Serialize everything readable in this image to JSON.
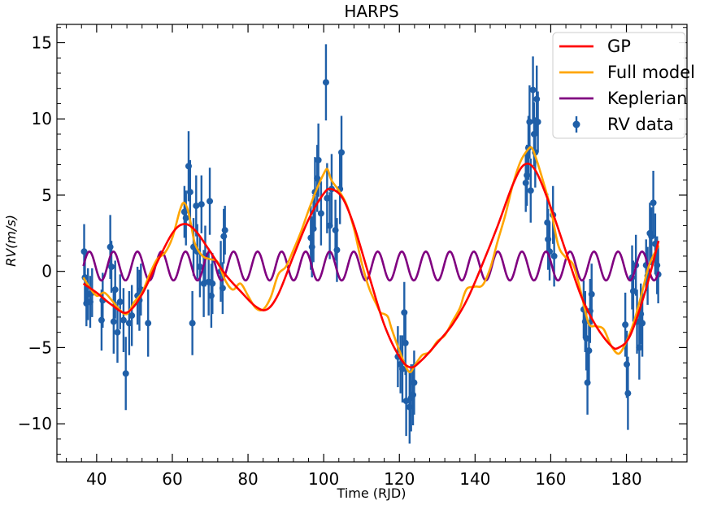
{
  "chart_data": {
    "type": "line",
    "title": "HARPS",
    "xlabel": "Time (RJD)",
    "ylabel": "RV(m/s)",
    "xlim": [
      29.5,
      196
    ],
    "ylim": [
      -12.5,
      16.2
    ],
    "xticks": [
      40,
      60,
      80,
      100,
      120,
      140,
      160,
      180
    ],
    "yticks": [
      -10,
      -5,
      0,
      5,
      10,
      15
    ],
    "grid": false,
    "legend": "top-right",
    "colors": {
      "gp": "#ff0000",
      "full": "#ffa500",
      "kep": "#800080",
      "data": "#1f5fa8"
    },
    "legend_entries": [
      {
        "key": "gp",
        "label": "GP"
      },
      {
        "key": "full",
        "label": "Full model"
      },
      {
        "key": "kep",
        "label": "Keplerian"
      },
      {
        "key": "data",
        "label": "RV data"
      }
    ],
    "series": [
      {
        "key": "gp",
        "points": [
          [
            36.5,
            -0.8
          ],
          [
            40,
            -1.4
          ],
          [
            44,
            -2.2
          ],
          [
            48,
            -2.7
          ],
          [
            52,
            -1.5
          ],
          [
            56,
            0.6
          ],
          [
            60,
            2.5
          ],
          [
            63,
            3.1
          ],
          [
            66,
            2.7
          ],
          [
            70,
            1.3
          ],
          [
            74,
            -0.2
          ],
          [
            78,
            -1.3
          ],
          [
            82,
            -2.3
          ],
          [
            85,
            -2.5
          ],
          [
            88,
            -1.5
          ],
          [
            92,
            1.0
          ],
          [
            96,
            3.4
          ],
          [
            100,
            5.1
          ],
          [
            102,
            5.4
          ],
          [
            105,
            4.8
          ],
          [
            108,
            3.0
          ],
          [
            112,
            -0.3
          ],
          [
            116,
            -3.5
          ],
          [
            120,
            -5.6
          ],
          [
            123,
            -6.3
          ],
          [
            126,
            -5.8
          ],
          [
            130,
            -4.7
          ],
          [
            134,
            -3.5
          ],
          [
            138,
            -1.8
          ],
          [
            142,
            0.5
          ],
          [
            146,
            3.0
          ],
          [
            150,
            5.7
          ],
          [
            153,
            7.0
          ],
          [
            156,
            6.6
          ],
          [
            160,
            4.2
          ],
          [
            164,
            1.3
          ],
          [
            168,
            -1.6
          ],
          [
            172,
            -3.6
          ],
          [
            176,
            -4.9
          ],
          [
            178,
            -5.0
          ],
          [
            181,
            -4.2
          ],
          [
            185,
            -1.3
          ],
          [
            188.5,
            2.0
          ]
        ]
      },
      {
        "key": "full",
        "points": [
          [
            36.5,
            -0.4
          ],
          [
            38,
            -1.0
          ],
          [
            40,
            -1.6
          ],
          [
            42,
            -1.4
          ],
          [
            44,
            -1.9
          ],
          [
            46,
            -2.5
          ],
          [
            48,
            -2.8
          ],
          [
            50,
            -2.0
          ],
          [
            52,
            -1.4
          ],
          [
            54,
            -0.2
          ],
          [
            56,
            0.8
          ],
          [
            58,
            1.2
          ],
          [
            60,
            2.2
          ],
          [
            62,
            4.0
          ],
          [
            63,
            4.5
          ],
          [
            64,
            4.1
          ],
          [
            65,
            3.0
          ],
          [
            66,
            1.8
          ],
          [
            68,
            1.0
          ],
          [
            70,
            0.8
          ],
          [
            72,
            0.6
          ],
          [
            74,
            -0.6
          ],
          [
            76,
            -1.2
          ],
          [
            78,
            -0.8
          ],
          [
            80,
            -1.6
          ],
          [
            82,
            -2.4
          ],
          [
            84,
            -2.5
          ],
          [
            86,
            -1.7
          ],
          [
            88,
            -0.2
          ],
          [
            90,
            0.3
          ],
          [
            92,
            1.4
          ],
          [
            94,
            2.6
          ],
          [
            96,
            4.0
          ],
          [
            98,
            5.3
          ],
          [
            100,
            6.4
          ],
          [
            101,
            6.7
          ],
          [
            102,
            6.0
          ],
          [
            104,
            5.3
          ],
          [
            106,
            4.4
          ],
          [
            108,
            2.8
          ],
          [
            110,
            0.6
          ],
          [
            112,
            -1.1
          ],
          [
            114,
            -2.2
          ],
          [
            115,
            -2.7
          ],
          [
            116,
            -2.8
          ],
          [
            117,
            -3.0
          ],
          [
            118,
            -3.8
          ],
          [
            120,
            -5.2
          ],
          [
            122,
            -6.4
          ],
          [
            123,
            -6.6
          ],
          [
            124,
            -6.2
          ],
          [
            126,
            -5.5
          ],
          [
            128,
            -5.3
          ],
          [
            130,
            -4.6
          ],
          [
            132,
            -4.2
          ],
          [
            134,
            -3.3
          ],
          [
            136,
            -2.4
          ],
          [
            137,
            -1.6
          ],
          [
            138,
            -1.1
          ],
          [
            140,
            -1.0
          ],
          [
            142,
            -0.9
          ],
          [
            144,
            0.2
          ],
          [
            146,
            2.0
          ],
          [
            148,
            3.7
          ],
          [
            150,
            5.7
          ],
          [
            152,
            7.2
          ],
          [
            154,
            8.0
          ],
          [
            155,
            8.1
          ],
          [
            156,
            7.5
          ],
          [
            158,
            5.9
          ],
          [
            160,
            4.1
          ],
          [
            162,
            1.7
          ],
          [
            164,
            0.9
          ],
          [
            166,
            0.4
          ],
          [
            168,
            -1.4
          ],
          [
            170,
            -3.4
          ],
          [
            172,
            -3.6
          ],
          [
            174,
            -3.8
          ],
          [
            176,
            -4.9
          ],
          [
            178,
            -5.4
          ],
          [
            180,
            -4.6
          ],
          [
            182,
            -3.3
          ],
          [
            184,
            -1.5
          ],
          [
            186,
            0.4
          ],
          [
            188.5,
            1.7
          ]
        ]
      },
      {
        "key": "kep",
        "period": 6.35,
        "amplitude": 0.95,
        "offset": 0.35,
        "phase_ref": 36.5,
        "x_range": [
          36.5,
          188.5
        ]
      }
    ],
    "rv_data": [
      {
        "x": 36.7,
        "y": 1.3,
        "err": 1.8
      },
      {
        "x": 36.9,
        "y": -0.4,
        "err": 1.6
      },
      {
        "x": 37.3,
        "y": -2.1,
        "err": 1.5
      },
      {
        "x": 37.7,
        "y": -1.5,
        "err": 1.7
      },
      {
        "x": 38.3,
        "y": -2.0,
        "err": 1.7
      },
      {
        "x": 38.8,
        "y": -1.4,
        "err": 1.6
      },
      {
        "x": 41.3,
        "y": -3.2,
        "err": 2.0
      },
      {
        "x": 41.6,
        "y": -1.9,
        "err": 1.8
      },
      {
        "x": 43.6,
        "y": 1.6,
        "err": 2.1
      },
      {
        "x": 43.9,
        "y": 0.3,
        "err": 1.7
      },
      {
        "x": 44.5,
        "y": -3.3,
        "err": 2.1
      },
      {
        "x": 44.9,
        "y": -1.2,
        "err": 1.9
      },
      {
        "x": 45.5,
        "y": -4.0,
        "err": 2.0
      },
      {
        "x": 46.2,
        "y": -2.0,
        "err": 1.8
      },
      {
        "x": 47.1,
        "y": -3.2,
        "err": 2.1
      },
      {
        "x": 47.7,
        "y": -6.7,
        "err": 2.4
      },
      {
        "x": 48.6,
        "y": -3.4,
        "err": 2.1
      },
      {
        "x": 49.3,
        "y": -2.9,
        "err": 2.0
      },
      {
        "x": 50.8,
        "y": -1.6,
        "err": 1.9
      },
      {
        "x": 51.3,
        "y": -1.9,
        "err": 2.0
      },
      {
        "x": 51.7,
        "y": -1.2,
        "err": 1.7
      },
      {
        "x": 53.6,
        "y": -3.4,
        "err": 2.2
      },
      {
        "x": 63.2,
        "y": 3.9,
        "err": 1.7
      },
      {
        "x": 63.6,
        "y": 3.5,
        "err": 1.8
      },
      {
        "x": 64.3,
        "y": 6.9,
        "err": 2.3
      },
      {
        "x": 64.7,
        "y": 5.2,
        "err": 2.1
      },
      {
        "x": 65.3,
        "y": -3.4,
        "err": 2.1
      },
      {
        "x": 65.6,
        "y": 1.6,
        "err": 1.9
      },
      {
        "x": 66.3,
        "y": 4.3,
        "err": 2.0
      },
      {
        "x": 66.6,
        "y": 1.3,
        "err": 1.8
      },
      {
        "x": 67.3,
        "y": 0.3,
        "err": 2.0
      },
      {
        "x": 67.7,
        "y": 4.4,
        "err": 1.9
      },
      {
        "x": 68.3,
        "y": -0.8,
        "err": 2.2
      },
      {
        "x": 68.7,
        "y": 1.0,
        "err": 2.0
      },
      {
        "x": 69.6,
        "y": -0.7,
        "err": 2.2
      },
      {
        "x": 69.9,
        "y": 4.6,
        "err": 2.2
      },
      {
        "x": 70.3,
        "y": -1.6,
        "err": 2.1
      },
      {
        "x": 70.6,
        "y": -0.8,
        "err": 2.0
      },
      {
        "x": 72.8,
        "y": 0.0,
        "err": 2.0
      },
      {
        "x": 73.6,
        "y": 2.3,
        "err": 1.8
      },
      {
        "x": 73.9,
        "y": 2.7,
        "err": 1.6
      },
      {
        "x": 73.3,
        "y": -1.1,
        "err": 1.7
      },
      {
        "x": 96.6,
        "y": 2.2,
        "err": 2.1
      },
      {
        "x": 96.9,
        "y": 1.6,
        "err": 2.0
      },
      {
        "x": 97.3,
        "y": 2.8,
        "err": 2.2
      },
      {
        "x": 97.7,
        "y": 5.2,
        "err": 2.3
      },
      {
        "x": 98.3,
        "y": 6.1,
        "err": 2.2
      },
      {
        "x": 98.6,
        "y": 7.3,
        "err": 2.4
      },
      {
        "x": 99.3,
        "y": 3.8,
        "err": 2.1
      },
      {
        "x": 100.6,
        "y": 12.4,
        "err": 2.5
      },
      {
        "x": 100.9,
        "y": 4.8,
        "err": 2.3
      },
      {
        "x": 101.6,
        "y": 3.0,
        "err": 2.2
      },
      {
        "x": 102.1,
        "y": 5.4,
        "err": 2.3
      },
      {
        "x": 103.1,
        "y": 2.7,
        "err": 2.0
      },
      {
        "x": 103.5,
        "y": 1.4,
        "err": 2.1
      },
      {
        "x": 104.3,
        "y": 5.4,
        "err": 2.3
      },
      {
        "x": 104.7,
        "y": 7.8,
        "err": 2.4
      },
      {
        "x": 119.6,
        "y": -5.6,
        "err": 2.0
      },
      {
        "x": 120.3,
        "y": -6.1,
        "err": 1.9
      },
      {
        "x": 120.8,
        "y": -6.4,
        "err": 2.2
      },
      {
        "x": 121.3,
        "y": -2.7,
        "err": 2.0
      },
      {
        "x": 121.6,
        "y": -4.7,
        "err": 2.1
      },
      {
        "x": 121.8,
        "y": -8.5,
        "err": 2.3
      },
      {
        "x": 122.7,
        "y": -8.9,
        "err": 2.4
      },
      {
        "x": 123.1,
        "y": -8.3,
        "err": 2.2
      },
      {
        "x": 123.6,
        "y": -8.1,
        "err": 2.0
      },
      {
        "x": 123.9,
        "y": -7.3,
        "err": 2.1
      },
      {
        "x": 153.4,
        "y": 5.8,
        "err": 1.9
      },
      {
        "x": 153.7,
        "y": 6.3,
        "err": 2.0
      },
      {
        "x": 154.1,
        "y": 8.1,
        "err": 2.1
      },
      {
        "x": 154.4,
        "y": 9.8,
        "err": 2.4
      },
      {
        "x": 154.7,
        "y": 5.3,
        "err": 2.1
      },
      {
        "x": 155.3,
        "y": 11.9,
        "err": 2.2
      },
      {
        "x": 155.6,
        "y": 9.0,
        "err": 2.1
      },
      {
        "x": 155.9,
        "y": 7.8,
        "err": 2.3
      },
      {
        "x": 156.3,
        "y": 11.3,
        "err": 2.2
      },
      {
        "x": 156.6,
        "y": 9.8,
        "err": 2.0
      },
      {
        "x": 159.1,
        "y": 3.2,
        "err": 1.9
      },
      {
        "x": 159.3,
        "y": 2.1,
        "err": 2.0
      },
      {
        "x": 159.7,
        "y": 1.3,
        "err": 1.9
      },
      {
        "x": 160.6,
        "y": 3.7,
        "err": 1.9
      },
      {
        "x": 160.9,
        "y": 1.0,
        "err": 2.0
      },
      {
        "x": 168.7,
        "y": -2.5,
        "err": 1.9
      },
      {
        "x": 169.1,
        "y": -3.3,
        "err": 2.0
      },
      {
        "x": 169.4,
        "y": -4.4,
        "err": 2.1
      },
      {
        "x": 169.7,
        "y": -7.3,
        "err": 2.1
      },
      {
        "x": 170.1,
        "y": -5.2,
        "err": 2.0
      },
      {
        "x": 170.4,
        "y": -2.6,
        "err": 2.1
      },
      {
        "x": 170.8,
        "y": -1.5,
        "err": 2.0
      },
      {
        "x": 179.7,
        "y": -3.5,
        "err": 2.1
      },
      {
        "x": 180.1,
        "y": -6.1,
        "err": 2.2
      },
      {
        "x": 180.4,
        "y": -8.0,
        "err": 2.4
      },
      {
        "x": 181.5,
        "y": -0.4,
        "err": 2.1
      },
      {
        "x": 181.8,
        "y": -1.3,
        "err": 2.0
      },
      {
        "x": 182.5,
        "y": 0.4,
        "err": 2.0
      },
      {
        "x": 182.8,
        "y": -3.3,
        "err": 2.1
      },
      {
        "x": 183.4,
        "y": -5.0,
        "err": 2.1
      },
      {
        "x": 183.8,
        "y": -2.8,
        "err": 2.0
      },
      {
        "x": 184.2,
        "y": -3.4,
        "err": 2.2
      },
      {
        "x": 185.2,
        "y": 0.4,
        "err": 1.7
      },
      {
        "x": 185.6,
        "y": -0.3,
        "err": 1.9
      },
      {
        "x": 186.2,
        "y": 2.5,
        "err": 2.0
      },
      {
        "x": 186.6,
        "y": 2.3,
        "err": 1.9
      },
      {
        "x": 187.1,
        "y": 4.5,
        "err": 2.1
      },
      {
        "x": 187.6,
        "y": 1.8,
        "err": 2.0
      },
      {
        "x": 188.1,
        "y": 0.4,
        "err": 1.9
      },
      {
        "x": 188.4,
        "y": -0.2,
        "err": 1.9
      }
    ]
  }
}
